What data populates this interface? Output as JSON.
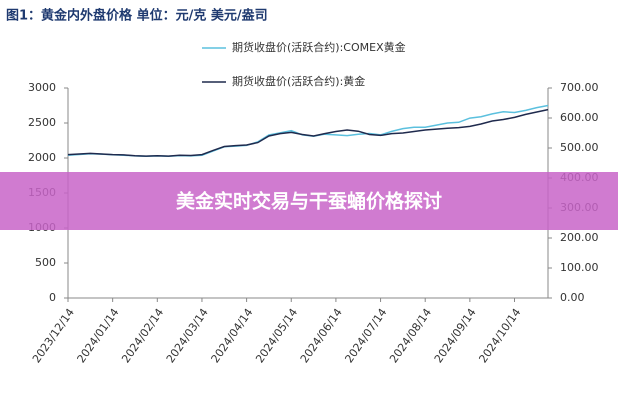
{
  "chart_data": {
    "type": "line",
    "title": "图1：黄金内外盘价格  单位：元/克 美元/盎司",
    "annotation": "美金实时交易与干蚕蛹价格探讨",
    "categories": [
      "2023/12/14",
      null,
      null,
      null,
      "2024/01/14",
      null,
      null,
      null,
      "2024/02/14",
      null,
      null,
      null,
      "2024/03/14",
      null,
      null,
      null,
      "2024/04/14",
      null,
      null,
      null,
      "2024/05/14",
      null,
      null,
      null,
      "2024/06/14",
      null,
      null,
      null,
      "2024/07/14",
      null,
      null,
      null,
      "2024/08/14",
      null,
      null,
      null,
      "2024/09/14",
      null,
      null,
      null,
      "2024/10/14",
      null,
      null,
      null
    ],
    "series": [
      {
        "name": "期货收盘价(活跃合约):COMEX黄金",
        "color": "#5bc0de",
        "axis": "y",
        "values": [
          2040,
          2050,
          2060,
          2055,
          2045,
          2040,
          2030,
          2025,
          2030,
          2025,
          2035,
          2030,
          2040,
          2100,
          2160,
          2170,
          2180,
          2230,
          2330,
          2360,
          2390,
          2330,
          2310,
          2340,
          2330,
          2320,
          2340,
          2350,
          2330,
          2380,
          2420,
          2440,
          2440,
          2470,
          2500,
          2510,
          2570,
          2590,
          2630,
          2660,
          2650,
          2680,
          2720,
          2750
        ]
      },
      {
        "name": "期货收盘价(活跃合约):黄金",
        "color": "#1f2a4d",
        "axis": "y2",
        "values": [
          478,
          480,
          482,
          480,
          478,
          477,
          474,
          473,
          474,
          473,
          476,
          475,
          478,
          492,
          505,
          508,
          510,
          518,
          540,
          548,
          552,
          545,
          540,
          548,
          555,
          560,
          556,
          545,
          542,
          548,
          550,
          555,
          560,
          563,
          566,
          568,
          572,
          580,
          590,
          595,
          602,
          612,
          620,
          628
        ]
      }
    ],
    "ylim": [
      0,
      3000
    ],
    "yticks": [
      0,
      500,
      1000,
      1500,
      2000,
      2500,
      3000
    ],
    "y2lim": [
      0,
      700
    ],
    "y2ticks": [
      {
        "value": 0,
        "label": "0.00"
      },
      {
        "value": 100,
        "label": "100.00"
      },
      {
        "value": 200,
        "label": "200.00"
      },
      {
        "value": 300,
        "label": "300.00"
      },
      {
        "value": 400,
        "label": "400.00"
      },
      {
        "value": 500,
        "label": "500.00"
      },
      {
        "value": 600,
        "label": "600.00"
      },
      {
        "value": 700,
        "label": "700.00"
      }
    ]
  }
}
